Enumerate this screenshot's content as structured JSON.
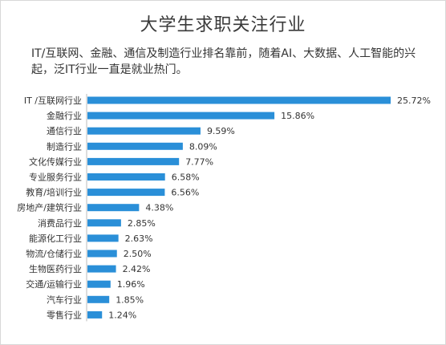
{
  "chart_data": {
    "type": "bar",
    "orientation": "horizontal",
    "title": "大学生求职关注行业",
    "subtitle": "IT/互联网、金融、通信及制造行业排名靠前，随着AI、大数据、人工智能的兴起，泛IT行业一直是就业热门。",
    "categories": [
      "IT /互联网行业",
      "金融行业",
      "通信行业",
      "制造行业",
      "文化传媒行业",
      "专业服务行业",
      "教育/培训行业",
      "房地产/建筑行业",
      "消费品行业",
      "能源化工行业",
      "物流/仓储行业",
      "生物医药行业",
      "交通/运输行业",
      "汽车行业",
      "零售行业"
    ],
    "values": [
      25.72,
      15.86,
      9.59,
      8.09,
      7.77,
      6.58,
      6.56,
      4.38,
      2.85,
      2.63,
      2.5,
      2.42,
      1.96,
      1.85,
      1.24
    ],
    "value_labels": [
      "25.72%",
      "15.86%",
      "9.59%",
      "8.09%",
      "7.77%",
      "6.58%",
      "6.56%",
      "4.38%",
      "2.85%",
      "2.63%",
      "2.50%",
      "2.42%",
      "1.96%",
      "1.85%",
      "1.24%"
    ],
    "bar_color": "#2a8fd8",
    "grid": false,
    "legend": false
  }
}
